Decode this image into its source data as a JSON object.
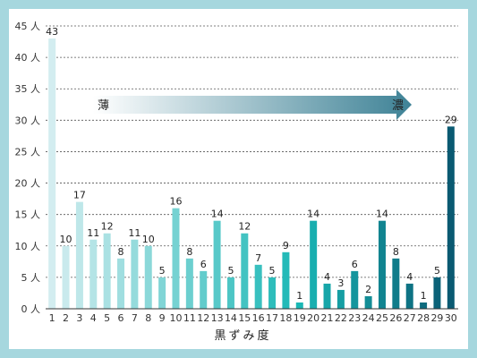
{
  "chart_data": {
    "type": "bar",
    "categories": [
      "1",
      "2",
      "3",
      "4",
      "5",
      "6",
      "7",
      "8",
      "9",
      "10",
      "11",
      "12",
      "13",
      "14",
      "15",
      "16",
      "17",
      "18",
      "19",
      "20",
      "21",
      "22",
      "23",
      "24",
      "25",
      "26",
      "27",
      "28",
      "29",
      "30"
    ],
    "values": [
      43,
      10,
      17,
      11,
      12,
      8,
      11,
      10,
      5,
      16,
      8,
      6,
      14,
      5,
      12,
      7,
      5,
      9,
      1,
      14,
      4,
      3,
      6,
      2,
      14,
      8,
      4,
      1,
      5,
      29
    ],
    "xlabel": "黒ずみ度",
    "ylabel": "",
    "y_unit": "人",
    "ylim": [
      0,
      45
    ],
    "yticks": [
      0,
      5,
      10,
      15,
      20,
      25,
      30,
      35,
      40,
      45
    ],
    "grid": true,
    "arrow": {
      "start_label": "薄",
      "end_label": "濃"
    },
    "colors": {
      "light": "#d3edf0",
      "mid": "#1ab7b5",
      "dark": "#0a5a72",
      "arrow_start": "#ffffff",
      "arrow_end": "#3e8296"
    }
  }
}
